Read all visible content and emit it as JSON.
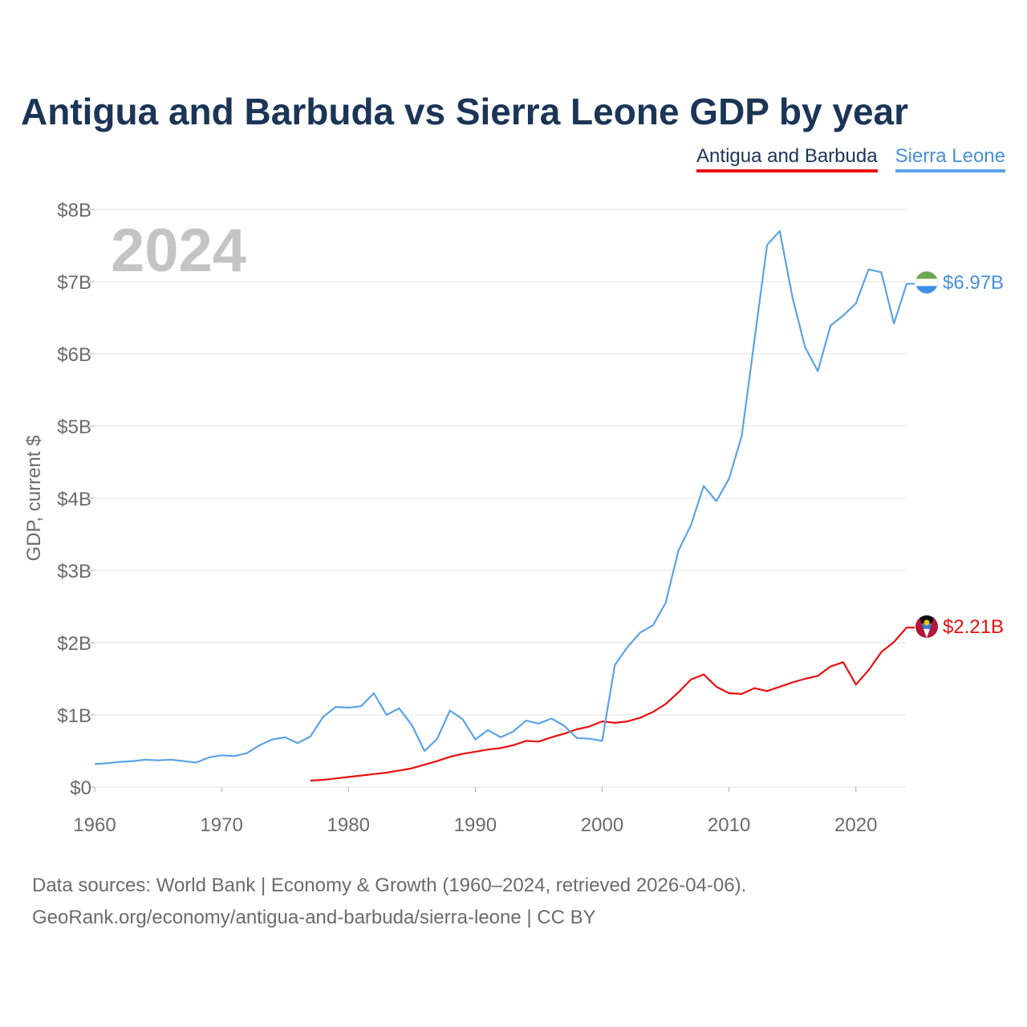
{
  "title": "Antigua and Barbuda vs Sierra Leone GDP by year",
  "legend": [
    {
      "label": "Antigua and Barbuda",
      "color": "#e8100f"
    },
    {
      "label": "Sierra Leone",
      "color": "#5ba3e6"
    }
  ],
  "year_watermark": "2024",
  "end_labels": {
    "antigua": "$2.21B",
    "sierra_leone": "$6.97B"
  },
  "source_line1": "Data sources: World Bank | Economy & Growth (1960–2024, retrieved 2026-04-06).",
  "source_line2": "GeoRank.org/economy/antigua-and-barbuda/sierra-leone | CC BY",
  "chart_data": {
    "type": "line",
    "title": "Antigua and Barbuda vs Sierra Leone GDP by year",
    "xlabel": "",
    "ylabel": "GDP, current $",
    "xlim": [
      1960,
      2024
    ],
    "ylim": [
      0,
      8
    ],
    "y_unit": "billion USD",
    "x_ticks": [
      1960,
      1970,
      1980,
      1990,
      2000,
      2010,
      2020
    ],
    "x_tick_labels": [
      "1960",
      "1970",
      "1980",
      "1990",
      "2000",
      "2010",
      "2020"
    ],
    "y_ticks": [
      0,
      1,
      2,
      3,
      4,
      5,
      6,
      7,
      8
    ],
    "y_tick_labels": [
      "$0",
      "$1B",
      "$2B",
      "$3B",
      "$4B",
      "$5B",
      "$6B",
      "$7B",
      "$8B"
    ],
    "grid": true,
    "legend_position": "top-right",
    "series": [
      {
        "name": "Antigua and Barbuda",
        "color": "#e8100f",
        "x": [
          1977,
          1978,
          1979,
          1980,
          1981,
          1982,
          1983,
          1984,
          1985,
          1986,
          1987,
          1988,
          1989,
          1990,
          1991,
          1992,
          1993,
          1994,
          1995,
          1996,
          1997,
          1998,
          1999,
          2000,
          2001,
          2002,
          2003,
          2004,
          2005,
          2006,
          2007,
          2008,
          2009,
          2010,
          2011,
          2012,
          2013,
          2014,
          2015,
          2016,
          2017,
          2018,
          2019,
          2020,
          2021,
          2022,
          2023,
          2024
        ],
        "values": [
          0.09,
          0.1,
          0.12,
          0.14,
          0.16,
          0.18,
          0.2,
          0.23,
          0.26,
          0.31,
          0.36,
          0.42,
          0.46,
          0.49,
          0.52,
          0.54,
          0.58,
          0.64,
          0.63,
          0.69,
          0.74,
          0.8,
          0.84,
          0.91,
          0.89,
          0.91,
          0.96,
          1.04,
          1.15,
          1.31,
          1.49,
          1.56,
          1.39,
          1.3,
          1.29,
          1.37,
          1.33,
          1.39,
          1.45,
          1.5,
          1.54,
          1.67,
          1.73,
          1.42,
          1.62,
          1.87,
          2.01,
          2.21
        ]
      },
      {
        "name": "Sierra Leone",
        "color": "#5ba3e6",
        "x": [
          1960,
          1961,
          1962,
          1963,
          1964,
          1965,
          1966,
          1967,
          1968,
          1969,
          1970,
          1971,
          1972,
          1973,
          1974,
          1975,
          1976,
          1977,
          1978,
          1979,
          1980,
          1981,
          1982,
          1983,
          1984,
          1985,
          1986,
          1987,
          1988,
          1989,
          1990,
          1991,
          1992,
          1993,
          1994,
          1995,
          1996,
          1997,
          1998,
          1999,
          2000,
          2001,
          2002,
          2003,
          2004,
          2005,
          2006,
          2007,
          2008,
          2009,
          2010,
          2011,
          2012,
          2013,
          2014,
          2015,
          2016,
          2017,
          2018,
          2019,
          2020,
          2021,
          2022,
          2023,
          2024
        ],
        "values": [
          0.32,
          0.33,
          0.35,
          0.36,
          0.38,
          0.37,
          0.38,
          0.36,
          0.34,
          0.41,
          0.44,
          0.43,
          0.47,
          0.58,
          0.66,
          0.69,
          0.61,
          0.7,
          0.97,
          1.11,
          1.1,
          1.12,
          1.3,
          1.0,
          1.09,
          0.86,
          0.5,
          0.67,
          1.06,
          0.94,
          0.66,
          0.79,
          0.69,
          0.77,
          0.92,
          0.88,
          0.95,
          0.85,
          0.68,
          0.67,
          0.64,
          1.69,
          1.94,
          2.14,
          2.24,
          2.55,
          3.27,
          3.63,
          4.17,
          3.96,
          4.27,
          4.86,
          6.19,
          7.51,
          7.7,
          6.78,
          6.09,
          5.76,
          6.39,
          6.53,
          6.7,
          7.17,
          7.13,
          6.42,
          6.97
        ]
      }
    ]
  }
}
